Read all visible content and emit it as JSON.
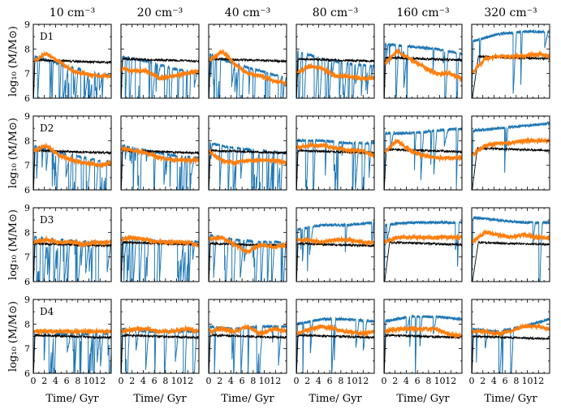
{
  "chart_data": {
    "type": "line",
    "layout": "4x6 grid of small multiples",
    "column_titles": [
      "10 cm⁻³",
      "20 cm⁻³",
      "40 cm⁻³",
      "80 cm⁻³",
      "160 cm⁻³",
      "320 cm⁻³"
    ],
    "row_labels": [
      "D1",
      "D2",
      "D3",
      "D4"
    ],
    "ylabel": "log₁₀ (M/M⊙)",
    "xlabel": "Time/ Gyr",
    "xlim": [
      0,
      14
    ],
    "ylim": [
      6,
      9
    ],
    "xticks": [
      0,
      1,
      2,
      3,
      4,
      5,
      6,
      7,
      8,
      9,
      10,
      11,
      12,
      13,
      14
    ],
    "xtick_labels": [
      "0",
      "2",
      "4",
      "6",
      "8",
      "10",
      "12"
    ],
    "xtick_label_values": [
      0,
      2,
      4,
      6,
      8,
      10,
      12
    ],
    "yticks": [
      6,
      6.5,
      7,
      7.5,
      8,
      8.5,
      9
    ],
    "ytick_labels": [
      "6",
      "7",
      "8",
      "9"
    ],
    "ytick_label_values": [
      6,
      7,
      8,
      9
    ],
    "series_styles": [
      {
        "name": "blue",
        "color": "#1f77b4",
        "width": 1.0
      },
      {
        "name": "orange",
        "color": "#ff7f0e",
        "width": 2.0
      },
      {
        "name": "black",
        "color": "#000000",
        "width": 0.9
      }
    ],
    "panels": [
      {
        "row": 0,
        "col": 0,
        "blue": {
          "base": [
            7.7,
            7.4,
            7.1,
            6.9
          ],
          "drops": 24,
          "seed": 11
        },
        "orange": [
          7.5,
          7.8,
          7.5,
          7.1,
          7.0,
          6.9,
          6.9
        ],
        "black": {
          "level": 7.55,
          "rise": 0.3
        }
      },
      {
        "row": 0,
        "col": 1,
        "blue": {
          "base": [
            7.7,
            7.5,
            7.2,
            7.0
          ],
          "drops": 22,
          "seed": 12
        },
        "orange": [
          7.2,
          7.1,
          7.1,
          6.8,
          6.9,
          7.0,
          7.1
        ],
        "black": {
          "level": 7.6,
          "rise": 0.3
        }
      },
      {
        "row": 0,
        "col": 2,
        "blue": {
          "base": [
            7.8,
            7.4,
            7.1,
            6.8
          ],
          "drops": 22,
          "seed": 13
        },
        "orange": [
          7.5,
          7.9,
          7.4,
          7.0,
          6.9,
          6.7,
          6.6
        ],
        "black": {
          "level": 7.6,
          "rise": 0.3
        }
      },
      {
        "row": 0,
        "col": 3,
        "blue": {
          "base": [
            7.9,
            7.6,
            7.4,
            7.3
          ],
          "drops": 22,
          "seed": 14
        },
        "orange": [
          7.0,
          7.3,
          7.2,
          6.9,
          6.9,
          6.8,
          6.8
        ],
        "black": {
          "level": 7.6,
          "rise": 0.3
        }
      },
      {
        "row": 0,
        "col": 4,
        "blue": {
          "base": [
            8.2,
            8.1,
            8.0,
            7.8
          ],
          "drops": 12,
          "seed": 15
        },
        "orange": [
          7.4,
          7.9,
          7.6,
          7.3,
          7.0,
          7.0,
          6.8
        ],
        "black": {
          "level": 7.65,
          "rise": 0.3
        }
      },
      {
        "row": 0,
        "col": 5,
        "blue": {
          "base": [
            8.3,
            8.6,
            8.7,
            8.7
          ],
          "drops": 4,
          "seed": 16
        },
        "orange": [
          7.0,
          7.6,
          7.7,
          7.7,
          7.7,
          7.8,
          7.7
        ],
        "black": {
          "level": 7.7,
          "rise": 1.2
        }
      },
      {
        "row": 1,
        "col": 0,
        "blue": {
          "base": [
            7.8,
            7.5,
            7.3,
            7.1
          ],
          "drops": 24,
          "seed": 21
        },
        "orange": [
          7.6,
          7.8,
          7.4,
          7.2,
          7.1,
          7.0,
          7.1
        ],
        "black": {
          "level": 7.6,
          "rise": 0.3
        }
      },
      {
        "row": 1,
        "col": 1,
        "blue": {
          "base": [
            7.8,
            7.6,
            7.4,
            7.3
          ],
          "drops": 22,
          "seed": 22
        },
        "orange": [
          7.7,
          7.6,
          7.5,
          7.3,
          7.2,
          7.2,
          7.2
        ],
        "black": {
          "level": 7.6,
          "rise": 0.3
        }
      },
      {
        "row": 1,
        "col": 2,
        "blue": {
          "base": [
            7.9,
            7.7,
            7.6,
            7.5
          ],
          "drops": 20,
          "seed": 23
        },
        "orange": [
          7.6,
          7.2,
          7.1,
          7.2,
          7.2,
          7.2,
          7.1
        ],
        "black": {
          "level": 7.6,
          "rise": 0.3
        }
      },
      {
        "row": 1,
        "col": 3,
        "blue": {
          "base": [
            8.0,
            8.0,
            7.9,
            7.9
          ],
          "drops": 16,
          "seed": 24
        },
        "orange": [
          7.7,
          7.8,
          7.8,
          7.7,
          7.6,
          7.6,
          7.4
        ],
        "black": {
          "level": 7.6,
          "rise": 0.3
        }
      },
      {
        "row": 1,
        "col": 4,
        "blue": {
          "base": [
            8.3,
            8.3,
            8.4,
            8.5
          ],
          "drops": 8,
          "seed": 25
        },
        "orange": [
          7.5,
          8.0,
          7.6,
          7.4,
          7.3,
          7.3,
          7.3
        ],
        "black": {
          "level": 7.65,
          "rise": 0.4
        }
      },
      {
        "row": 1,
        "col": 5,
        "blue": {
          "base": [
            8.4,
            8.5,
            8.6,
            8.7
          ],
          "drops": 2,
          "seed": 26
        },
        "orange": [
          7.4,
          7.8,
          7.9,
          7.9,
          8.0,
          8.0,
          8.0
        ],
        "black": {
          "level": 7.7,
          "rise": 1.0
        }
      },
      {
        "row": 2,
        "col": 0,
        "blue": {
          "base": [
            7.8,
            7.7,
            7.6,
            7.6
          ],
          "drops": 26,
          "seed": 31
        },
        "orange": [
          7.6,
          7.7,
          7.6,
          7.6,
          7.5,
          7.6,
          7.6
        ],
        "black": {
          "level": 7.55,
          "rise": 0.3
        }
      },
      {
        "row": 2,
        "col": 1,
        "blue": {
          "base": [
            7.8,
            7.7,
            7.6,
            7.6
          ],
          "drops": 24,
          "seed": 32
        },
        "orange": [
          7.7,
          7.8,
          7.7,
          7.6,
          7.6,
          7.6,
          7.5
        ],
        "black": {
          "level": 7.6,
          "rise": 0.3
        }
      },
      {
        "row": 2,
        "col": 2,
        "blue": {
          "base": [
            7.9,
            7.7,
            7.6,
            7.6
          ],
          "drops": 16,
          "seed": 33
        },
        "orange": [
          7.7,
          7.8,
          7.5,
          7.2,
          7.5,
          7.4,
          7.5
        ],
        "black": {
          "level": 7.55,
          "rise": 0.3
        }
      },
      {
        "row": 2,
        "col": 3,
        "blue": {
          "base": [
            8.1,
            8.3,
            8.3,
            8.4
          ],
          "drops": 6,
          "seed": 34
        },
        "orange": [
          7.7,
          7.7,
          7.6,
          7.7,
          7.7,
          7.6,
          7.6
        ],
        "black": {
          "level": 7.55,
          "rise": 0.3
        }
      },
      {
        "row": 2,
        "col": 4,
        "blue": {
          "base": [
            8.3,
            8.4,
            8.4,
            8.4
          ],
          "drops": 3,
          "seed": 35
        },
        "orange": [
          7.6,
          7.8,
          7.8,
          7.8,
          7.8,
          7.8,
          7.8
        ],
        "black": {
          "level": 7.6,
          "rise": 1.0
        }
      },
      {
        "row": 2,
        "col": 5,
        "blue": {
          "base": [
            8.6,
            8.5,
            8.4,
            8.4
          ],
          "drops": 3,
          "seed": 36
        },
        "orange": [
          7.6,
          8.0,
          7.9,
          7.8,
          7.9,
          7.8,
          7.8
        ],
        "black": {
          "level": 7.6,
          "rise": 1.2
        }
      },
      {
        "row": 3,
        "col": 0,
        "blue": {
          "base": [
            7.7,
            7.6,
            7.6,
            7.6
          ],
          "drops": 20,
          "seed": 41
        },
        "orange": [
          7.7,
          7.7,
          7.7,
          7.7,
          7.7,
          7.7,
          7.7
        ],
        "black": {
          "level": 7.55,
          "rise": 0.3
        }
      },
      {
        "row": 3,
        "col": 1,
        "blue": {
          "base": [
            7.8,
            7.7,
            7.7,
            7.7
          ],
          "drops": 10,
          "seed": 42
        },
        "orange": [
          7.7,
          7.8,
          7.8,
          7.7,
          7.7,
          7.8,
          7.7
        ],
        "black": {
          "level": 7.55,
          "rise": 0.3
        }
      },
      {
        "row": 3,
        "col": 2,
        "blue": {
          "base": [
            7.9,
            7.8,
            7.9,
            7.9
          ],
          "drops": 9,
          "seed": 43
        },
        "orange": [
          7.7,
          7.8,
          7.7,
          7.9,
          7.6,
          7.8,
          7.7
        ],
        "black": {
          "level": 7.55,
          "rise": 0.3
        }
      },
      {
        "row": 3,
        "col": 3,
        "blue": {
          "base": [
            8.0,
            8.2,
            8.2,
            8.1
          ],
          "drops": 6,
          "seed": 44
        },
        "orange": [
          7.6,
          7.8,
          7.9,
          7.8,
          7.7,
          7.6,
          7.7
        ],
        "black": {
          "level": 7.55,
          "rise": 0.3
        }
      },
      {
        "row": 3,
        "col": 4,
        "blue": {
          "base": [
            8.1,
            8.3,
            8.3,
            8.2
          ],
          "drops": 5,
          "seed": 45
        },
        "orange": [
          7.7,
          7.8,
          7.8,
          7.8,
          7.8,
          7.6,
          7.5
        ],
        "black": {
          "level": 7.55,
          "rise": 0.3
        }
      },
      {
        "row": 3,
        "col": 5,
        "blue": {
          "base": [
            7.8,
            7.7,
            7.9,
            8.2
          ],
          "drops": 5,
          "seed": 46
        },
        "orange": [
          7.7,
          7.7,
          7.6,
          7.7,
          7.9,
          7.9,
          7.8
        ],
        "black": {
          "level": 7.5,
          "rise": 0.3
        }
      }
    ]
  }
}
